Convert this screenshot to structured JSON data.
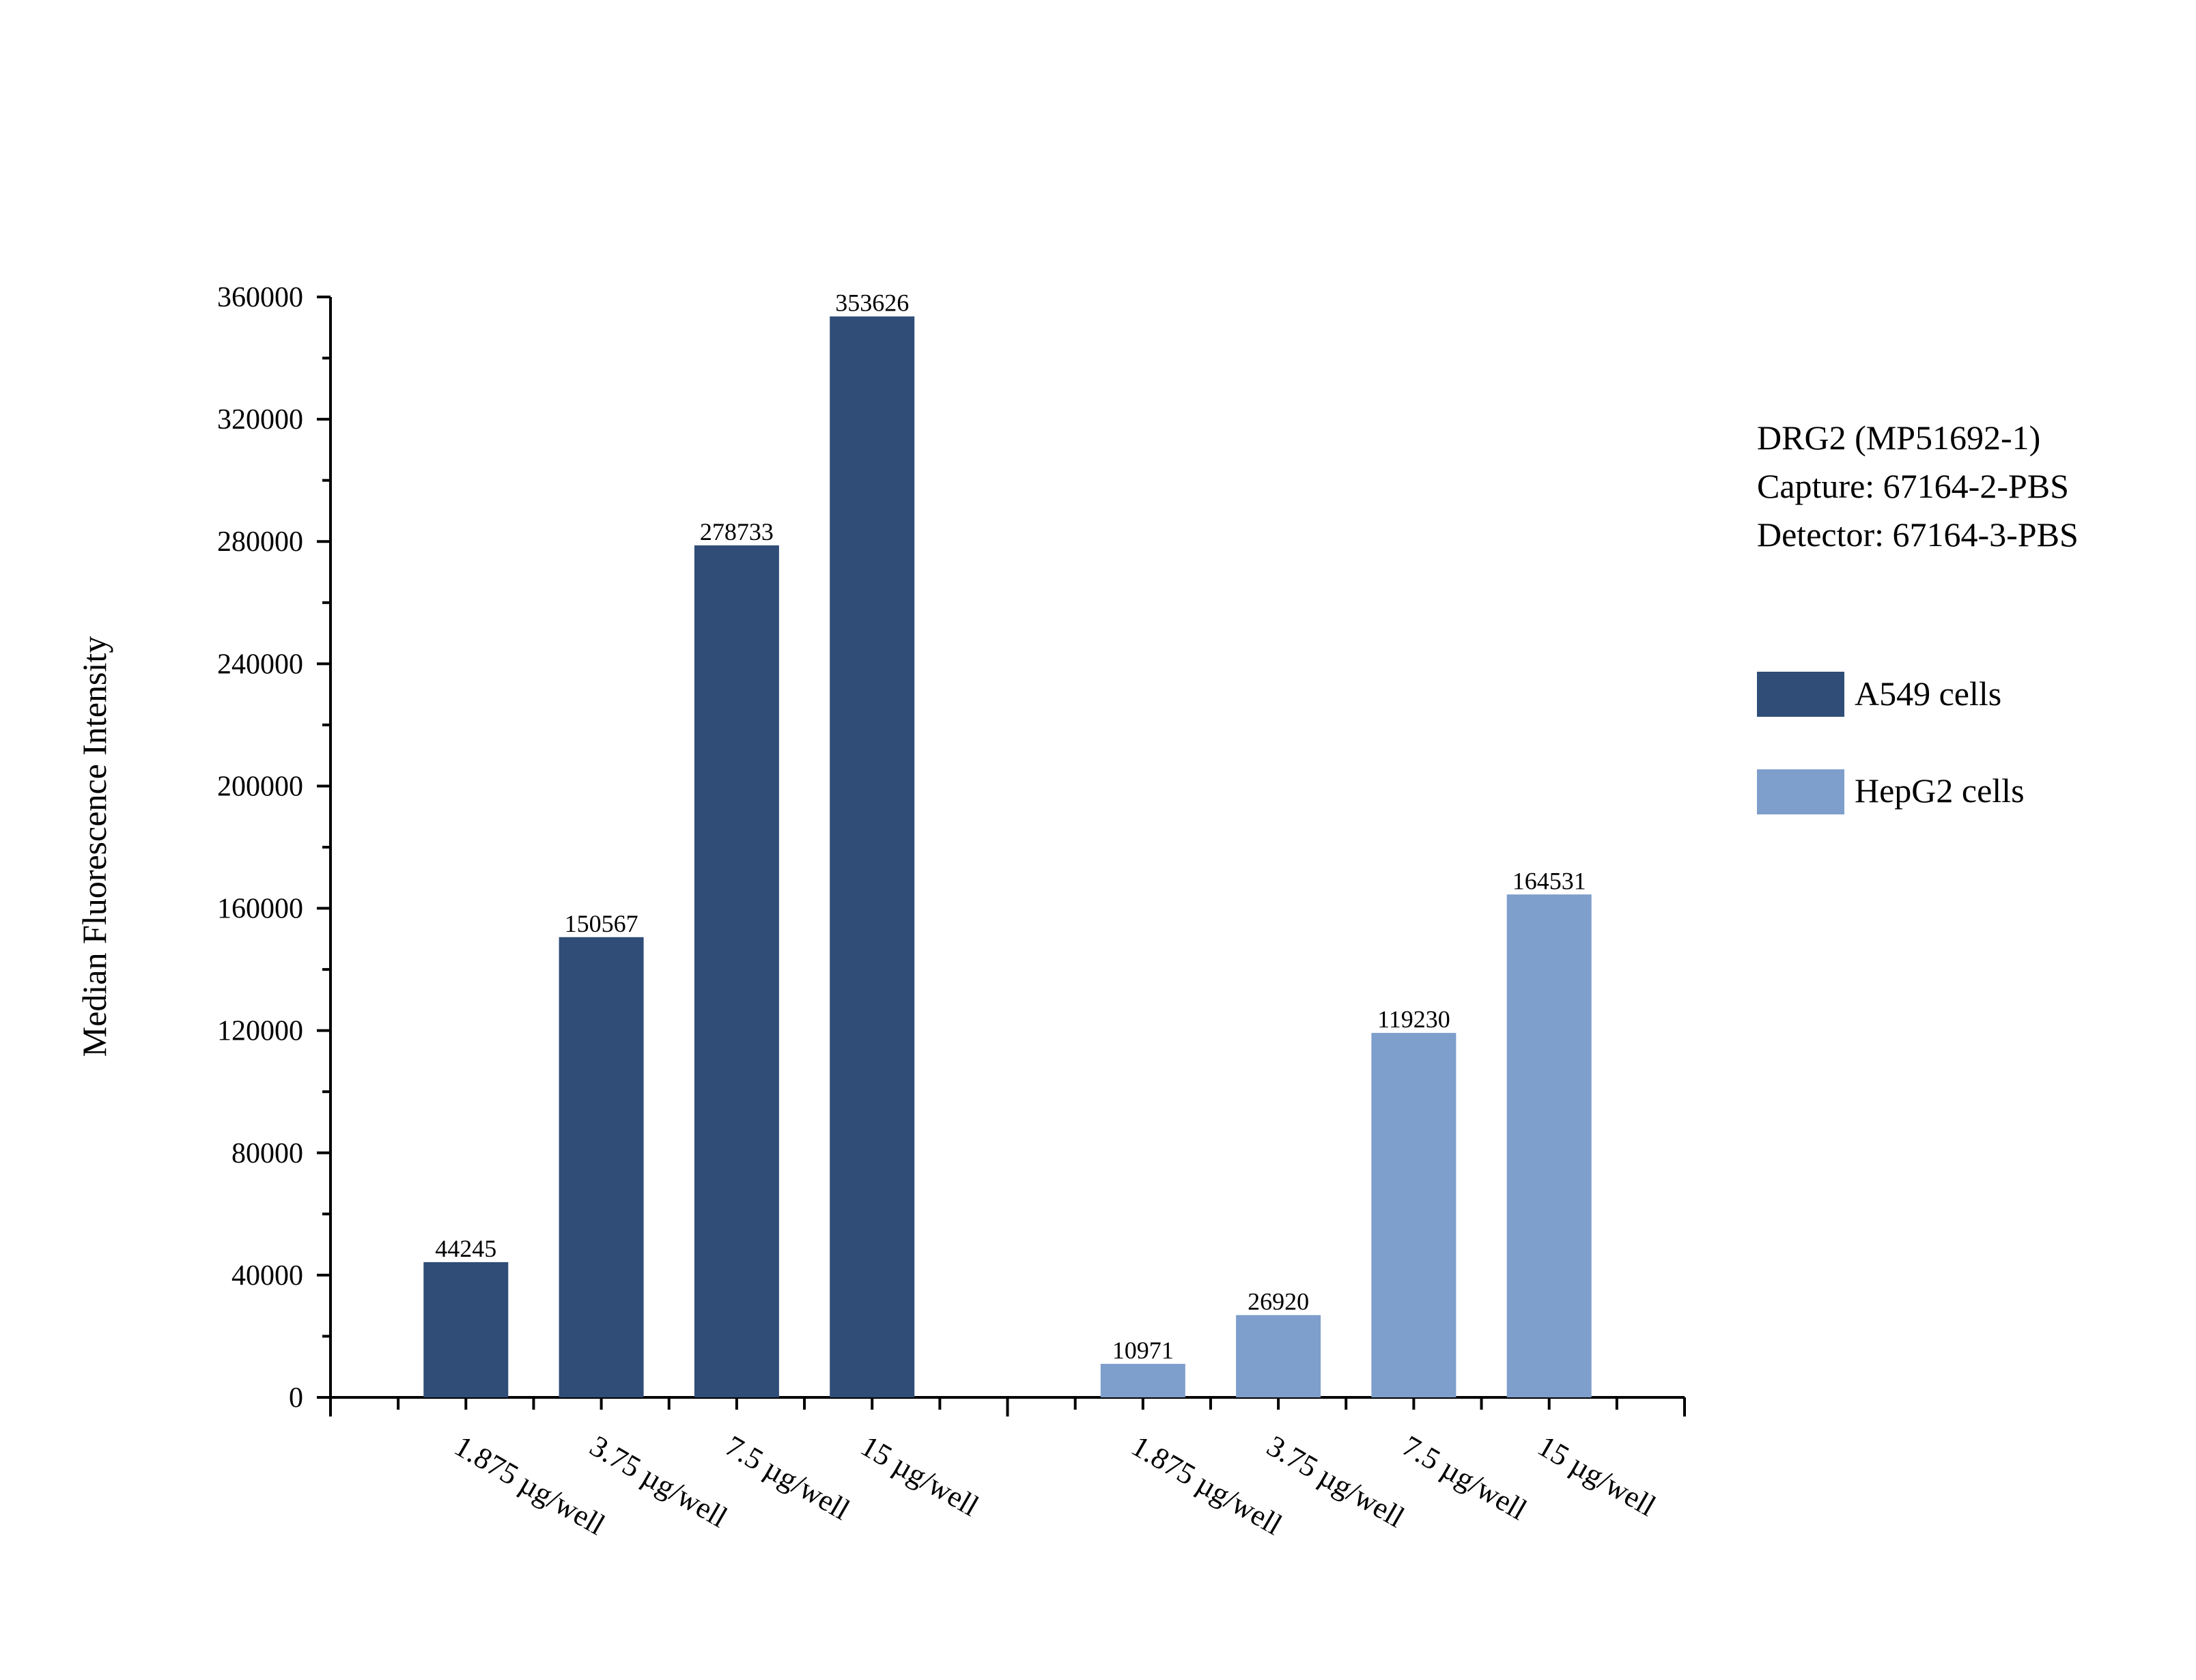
{
  "chart_data": {
    "type": "bar",
    "title": "",
    "xlabel": "",
    "ylabel": "Median Fluorescence Intensity",
    "ylim": [
      0,
      360000
    ],
    "yticks": [
      0,
      40000,
      80000,
      120000,
      160000,
      200000,
      240000,
      280000,
      320000,
      360000
    ],
    "grid": false,
    "legend_position": "right",
    "annotation": [
      "DRG2 (MP51692-1)",
      "Capture: 67164-2-PBS",
      "Detector: 67164-3-PBS"
    ],
    "groups": [
      {
        "name": "A549 cells",
        "color": "#2f4d77",
        "categories": [
          "1.875 µg/well",
          "3.75 µg/well",
          "7.5 µg/well",
          "15 µg/well"
        ],
        "values": [
          44245,
          150567,
          278733,
          353626
        ]
      },
      {
        "name": "HepG2 cells",
        "color": "#7e9ecb",
        "categories": [
          "1.875 µg/well",
          "3.75 µg/well",
          "7.5 µg/well",
          "15 µg/well"
        ],
        "values": [
          10971,
          26920,
          119230,
          164531
        ]
      }
    ]
  }
}
